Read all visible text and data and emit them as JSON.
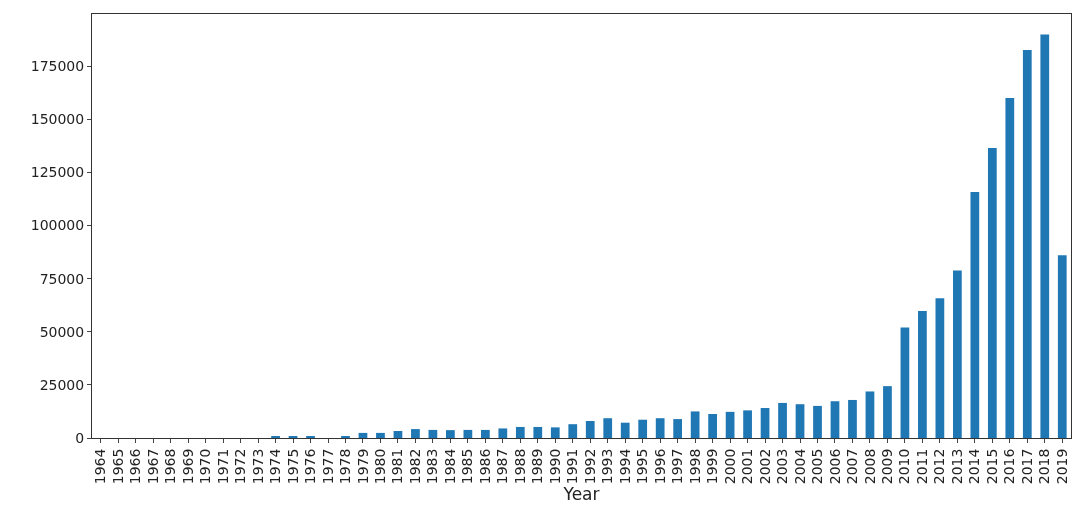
{
  "chart_data": {
    "type": "bar",
    "xlabel": "Year",
    "categories": [
      "1964",
      "1965",
      "1966",
      "1967",
      "1968",
      "1969",
      "1970",
      "1971",
      "1972",
      "1973",
      "1974",
      "1975",
      "1976",
      "1977",
      "1978",
      "1979",
      "1980",
      "1981",
      "1982",
      "1983",
      "1984",
      "1985",
      "1986",
      "1987",
      "1988",
      "1989",
      "1990",
      "1991",
      "1992",
      "1993",
      "1994",
      "1995",
      "1996",
      "1997",
      "1998",
      "1999",
      "2000",
      "2001",
      "2002",
      "2003",
      "2004",
      "2005",
      "2006",
      "2007",
      "2008",
      "2009",
      "2010",
      "2011",
      "2012",
      "2013",
      "2014",
      "2015",
      "2016",
      "2017",
      "2018",
      "2019"
    ],
    "values": [
      0,
      0,
      0,
      0,
      0,
      0,
      0,
      0,
      0,
      0,
      500,
      500,
      500,
      0,
      500,
      2400,
      2400,
      3300,
      4200,
      3800,
      3700,
      3800,
      3800,
      4500,
      5200,
      5200,
      5000,
      6500,
      8000,
      9300,
      7200,
      8600,
      9300,
      8900,
      12500,
      11300,
      12300,
      13000,
      14100,
      16500,
      15900,
      15100,
      17300,
      17900,
      21900,
      24400,
      52000,
      59800,
      65800,
      78800,
      115700,
      136400,
      160000,
      182600,
      189900,
      86000
    ],
    "color": "#1f77b4",
    "ylim": [
      0,
      199500
    ],
    "yticks": [
      0,
      25000,
      50000,
      75000,
      100000,
      125000,
      150000,
      175000
    ],
    "grid": false,
    "legend": false
  }
}
